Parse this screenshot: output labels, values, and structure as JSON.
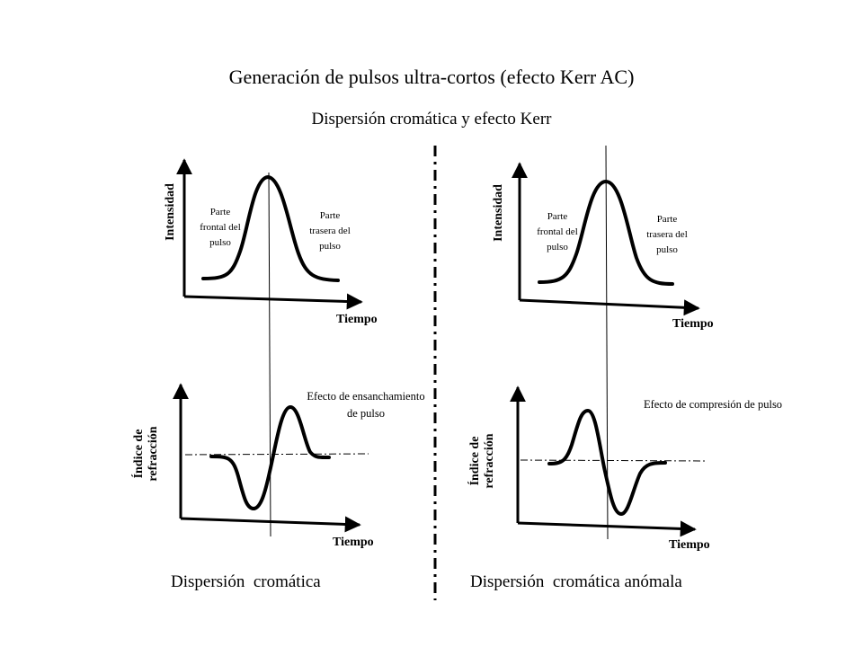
{
  "title": "Generación de pulsos ultra-cortos (efecto Kerr AC)",
  "subtitle": "Dispersión cromática y efecto Kerr",
  "left": {
    "top_panel": {
      "ylabel": "Intensidad",
      "xlabel": "Tiempo",
      "front_label": "Parte frontal del pulso",
      "rear_label": "Parte trasera del pulso"
    },
    "bottom_panel": {
      "ylabel": "Índice de refracción",
      "xlabel": "Tiempo",
      "annotation": "Efecto de ensanchamiento de pulso"
    },
    "caption": "Dispersión  cromática"
  },
  "right": {
    "top_panel": {
      "ylabel": "Intensidad",
      "xlabel": "Tiempo",
      "front_label": "Parte frontal del pulso",
      "rear_label": "Parte trasera del pulso"
    },
    "bottom_panel": {
      "ylabel": "Índice de refracción",
      "xlabel": "Tiempo",
      "annotation": "Efecto de compresión de pulso"
    },
    "caption": "Dispersión  cromática anómala"
  }
}
